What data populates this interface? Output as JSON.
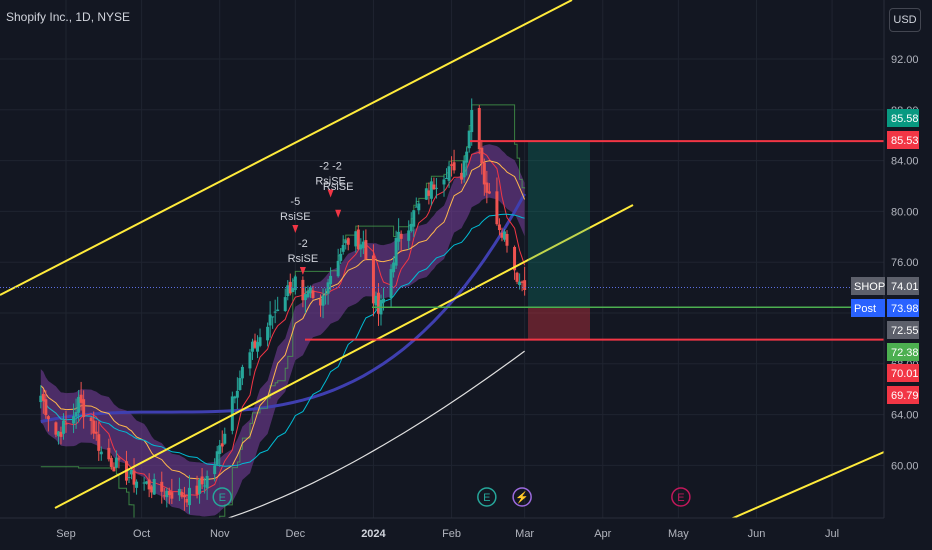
{
  "header": {
    "title": "Shopify Inc., 1D, NYSE",
    "currency": "USD"
  },
  "colors": {
    "background": "#131722",
    "up": "#26a69a",
    "down": "#ef5350",
    "channel": "#ffeb3b",
    "ribbon": "#7b3fa0",
    "ma_blue": "#3f3fb0",
    "tp_line": "#f23645",
    "entry_line": "#4caf50"
  },
  "chart_data": {
    "type": "candlestick",
    "y_ticks": [
      "92.00",
      "88.00",
      "84.00",
      "80.00",
      "76.00",
      "72.00",
      "68.00",
      "64.00",
      "60.00"
    ],
    "x_ticks": [
      {
        "label": "Sep",
        "date": "2023-09-01"
      },
      {
        "label": "Oct",
        "date": "2023-10-01"
      },
      {
        "label": "Nov",
        "date": "2023-11-01"
      },
      {
        "label": "Dec",
        "date": "2023-12-01"
      },
      {
        "label": "2024",
        "date": "2024-01-01",
        "bold": true
      },
      {
        "label": "Feb",
        "date": "2024-02-01"
      },
      {
        "label": "Mar",
        "date": "2024-03-01"
      },
      {
        "label": "Apr",
        "date": "2024-04-01"
      },
      {
        "label": "May",
        "date": "2024-05-01"
      },
      {
        "label": "Jun",
        "date": "2024-06-01"
      },
      {
        "label": "Jul",
        "date": "2024-07-01"
      }
    ],
    "price_badges": [
      {
        "label": "",
        "value": "85.58",
        "color": "#089981"
      },
      {
        "label": "",
        "value": "85.53",
        "color": "#f23645"
      },
      {
        "label": "SHOP",
        "value": "74.01",
        "color": "#5d606b"
      },
      {
        "label": "Post",
        "value": "73.98",
        "color": "#2962ff"
      },
      {
        "label": "",
        "value": "72.55",
        "color": "#5d606b"
      },
      {
        "label": "",
        "value": "72.38",
        "color": "#4caf50"
      },
      {
        "label": "",
        "value": "70.01",
        "color": "#f23645"
      },
      {
        "label": "",
        "value": "69.79",
        "color": "#f23645"
      }
    ],
    "annotations": [
      {
        "text": "-5",
        "second": "RsiSE",
        "date": "2023-12-01",
        "price": 80.5
      },
      {
        "text": "-2",
        "second": "RsiSE",
        "date": "2023-12-04",
        "price": 77.2
      },
      {
        "text": "-2 -2",
        "second": "RsiSE",
        "date": "2023-12-15",
        "price": 83.3
      },
      {
        "text": "RsiSE",
        "second": "",
        "date": "2023-12-18",
        "price": 81.7
      }
    ],
    "earnings_markers": [
      {
        "letter": "E",
        "date": "2023-11-02",
        "color": "#26a69a"
      },
      {
        "letter": "E",
        "date": "2024-02-15",
        "color": "#26a69a"
      },
      {
        "letter": "⚡",
        "date": "2024-02-29",
        "color": "#9c6ade"
      },
      {
        "letter": "E",
        "date": "2024-05-02",
        "color": "#c2185b"
      }
    ]
  }
}
